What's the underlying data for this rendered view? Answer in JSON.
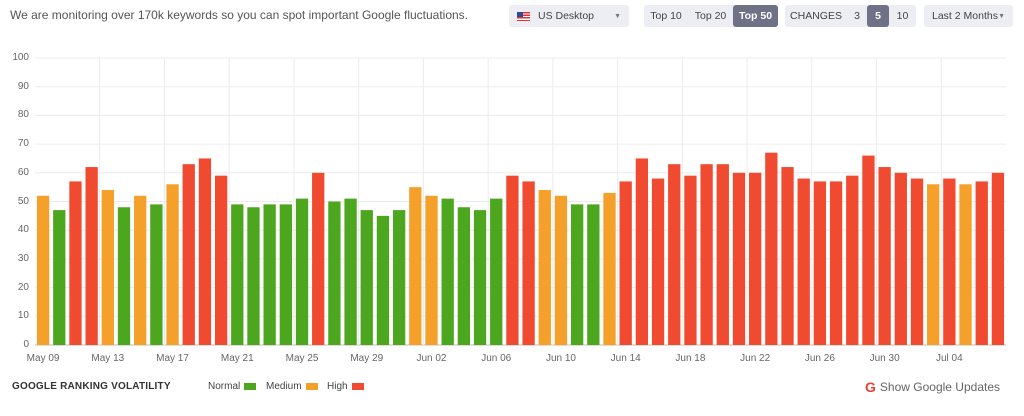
{
  "header": {
    "intro_text": "We are monitoring over 170k keywords so you can spot important Google fluctuations.",
    "device_selector": {
      "value": "US Desktop",
      "icon": "us-flag-icon"
    },
    "top_tabs": [
      {
        "label": "Top 10",
        "active": false
      },
      {
        "label": "Top 20",
        "active": false
      },
      {
        "label": "Top 50",
        "active": true
      }
    ],
    "changes": {
      "label": "CHANGES",
      "options": [
        {
          "label": "3",
          "active": false
        },
        {
          "label": "5",
          "active": true
        },
        {
          "label": "10",
          "active": false
        }
      ]
    },
    "period_selector": {
      "value": "Last 2 Months"
    }
  },
  "footer": {
    "title": "GOOGLE RANKING VOLATILITY",
    "legend": [
      {
        "label": "Normal",
        "color": "#4ca71f"
      },
      {
        "label": "Medium",
        "color": "#f4a02a"
      },
      {
        "label": "High",
        "color": "#f04b31"
      }
    ],
    "show_updates_label": "Show Google Updates",
    "show_updates_icon": "google-g-icon"
  },
  "colors": {
    "normal": "#4ca71f",
    "medium": "#f4a02a",
    "high": "#f04b31",
    "grid": "#ececec"
  },
  "chart_data": {
    "type": "bar",
    "ylim": [
      0,
      100
    ],
    "yticks": [
      0,
      10,
      20,
      30,
      40,
      50,
      60,
      70,
      80,
      90,
      100
    ],
    "x_tick_labels": [
      "May 09",
      "May 13",
      "May 17",
      "May 21",
      "May 25",
      "May 29",
      "Jun 02",
      "Jun 06",
      "Jun 10",
      "Jun 14",
      "Jun 18",
      "Jun 22",
      "Jun 26",
      "Jun 30",
      "Jul 04"
    ],
    "grid": true,
    "categories": [
      "May 09",
      "May 10",
      "May 11",
      "May 12",
      "May 13",
      "May 14",
      "May 15",
      "May 16",
      "May 17",
      "May 18",
      "May 19",
      "May 20",
      "May 21",
      "May 22",
      "May 23",
      "May 24",
      "May 25",
      "May 26",
      "May 27",
      "May 28",
      "May 29",
      "May 30",
      "May 31",
      "Jun 01",
      "Jun 02",
      "Jun 03",
      "Jun 04",
      "Jun 05",
      "Jun 06",
      "Jun 07",
      "Jun 08",
      "Jun 09",
      "Jun 10",
      "Jun 11",
      "Jun 12",
      "Jun 13",
      "Jun 14",
      "Jun 15",
      "Jun 16",
      "Jun 17",
      "Jun 18",
      "Jun 19",
      "Jun 20",
      "Jun 21",
      "Jun 22",
      "Jun 23",
      "Jun 24",
      "Jun 25",
      "Jun 26",
      "Jun 27",
      "Jun 28",
      "Jun 29",
      "Jun 30",
      "Jul 01",
      "Jul 02",
      "Jul 03",
      "Jul 04",
      "Jul 05",
      "Jul 06",
      "Jul 07"
    ],
    "values": [
      52,
      47,
      57,
      62,
      54,
      48,
      52,
      49,
      56,
      63,
      65,
      59,
      49,
      48,
      49,
      49,
      51,
      60,
      50,
      51,
      47,
      45,
      47,
      55,
      52,
      51,
      48,
      47,
      51,
      59,
      57,
      54,
      52,
      49,
      49,
      53,
      57,
      65,
      58,
      63,
      59,
      63,
      63,
      60,
      60,
      67,
      62,
      58,
      57,
      57,
      59,
      66,
      62,
      60,
      58,
      56,
      58,
      56,
      57,
      60
    ],
    "levels": [
      "medium",
      "normal",
      "high",
      "high",
      "medium",
      "normal",
      "medium",
      "normal",
      "medium",
      "high",
      "high",
      "high",
      "normal",
      "normal",
      "normal",
      "normal",
      "normal",
      "high",
      "normal",
      "normal",
      "normal",
      "normal",
      "normal",
      "medium",
      "medium",
      "normal",
      "normal",
      "normal",
      "normal",
      "high",
      "high",
      "medium",
      "medium",
      "normal",
      "normal",
      "medium",
      "high",
      "high",
      "high",
      "high",
      "high",
      "high",
      "high",
      "high",
      "high",
      "high",
      "high",
      "high",
      "high",
      "high",
      "high",
      "high",
      "high",
      "high",
      "high",
      "medium",
      "high",
      "medium",
      "high",
      "high"
    ]
  }
}
